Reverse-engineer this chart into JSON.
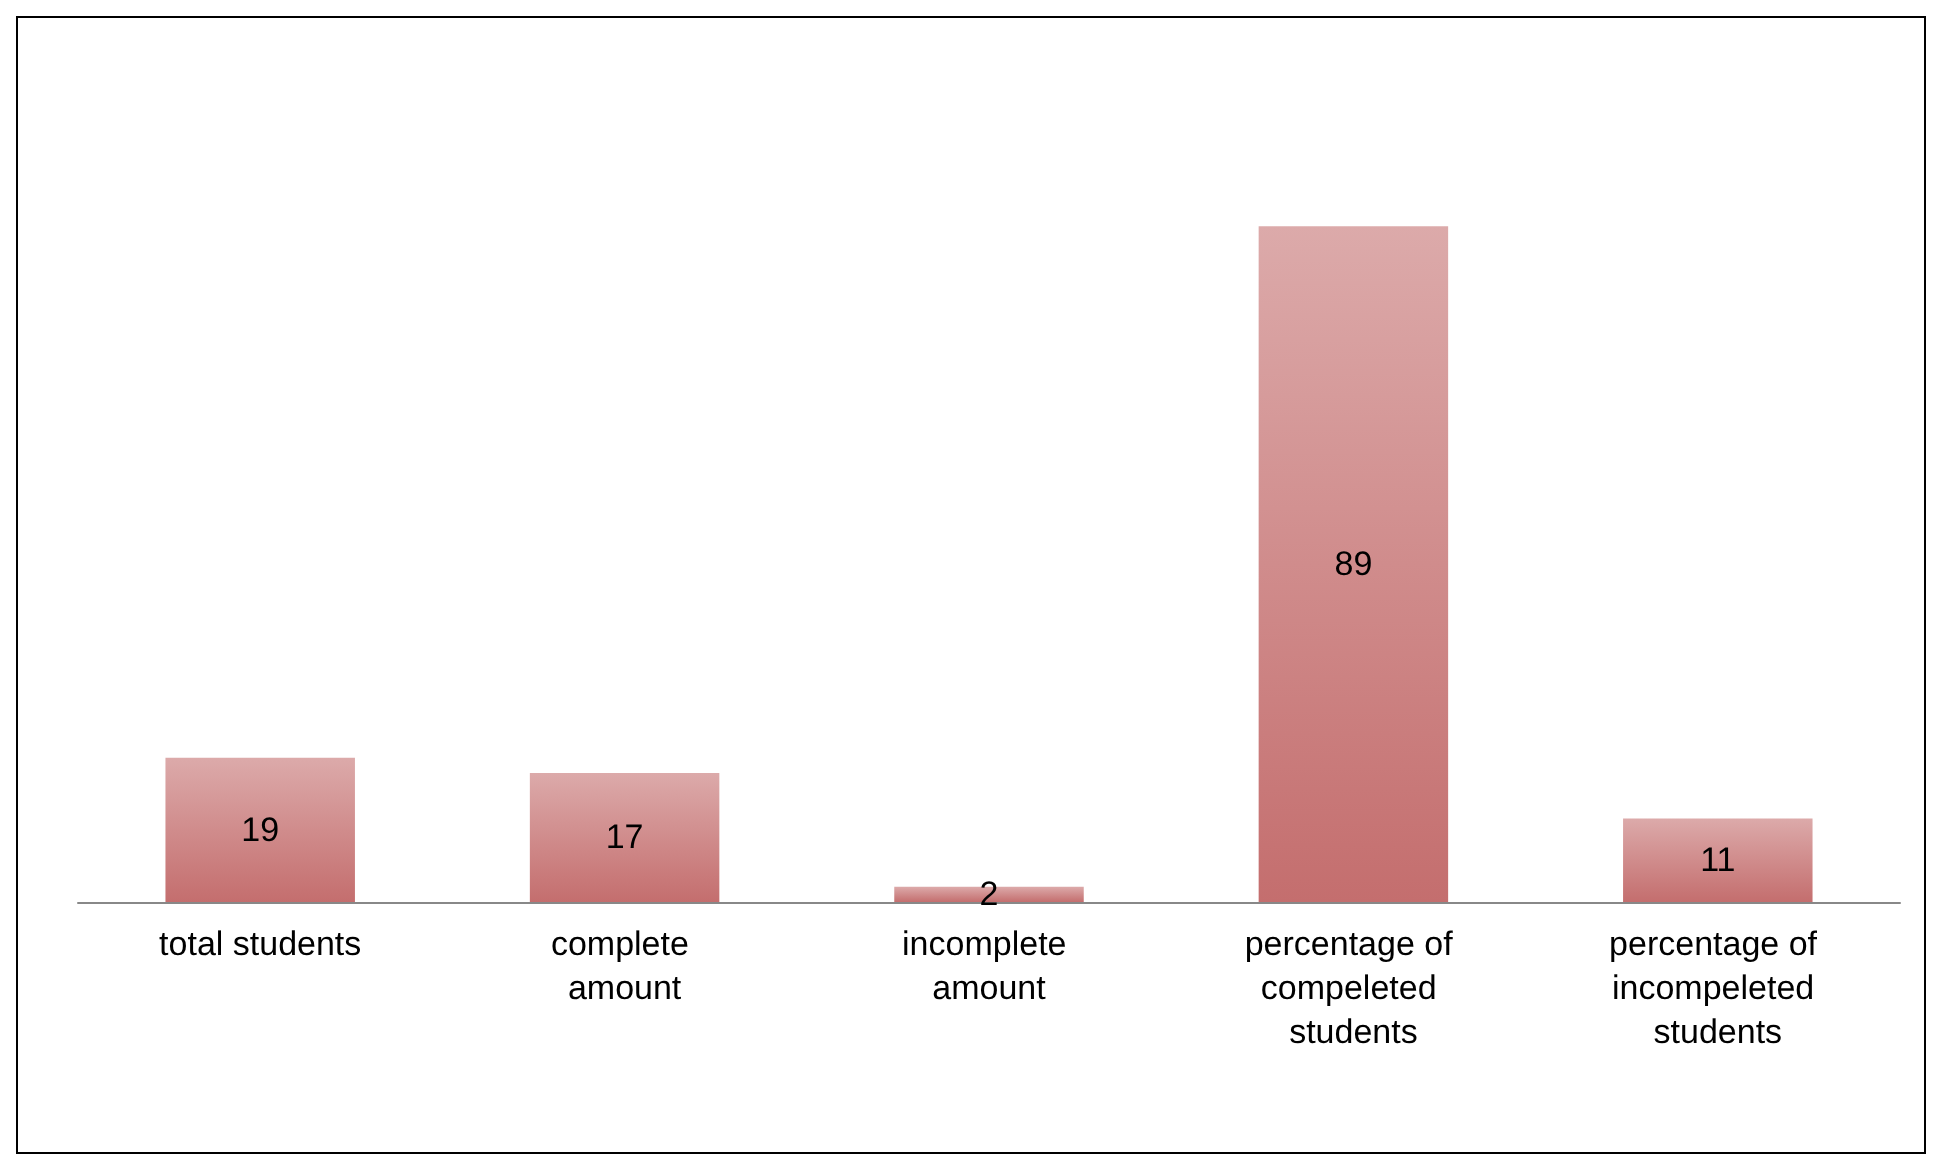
{
  "chart_data": {
    "type": "bar",
    "categories": [
      "total students",
      "complete amount",
      "incomplete amount",
      "percentage of compeleted students",
      "percentage of incompeleted students"
    ],
    "values": [
      19,
      17,
      2,
      89,
      11
    ],
    "color": "#dcaaaa",
    "data_labels": true
  }
}
